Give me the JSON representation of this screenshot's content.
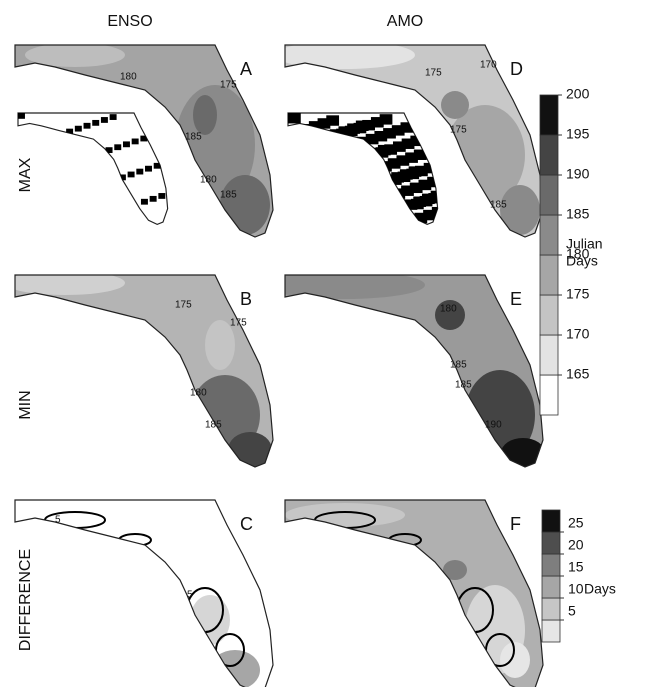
{
  "columns": [
    "ENSO",
    "AMO"
  ],
  "rows": [
    "MAX",
    "MIN",
    "DIFFERENCE"
  ],
  "panels": [
    {
      "letter": "A",
      "contour_labels": [
        "180",
        "175",
        "185",
        "180",
        "185"
      ]
    },
    {
      "letter": "D",
      "contour_labels": [
        "175",
        "170",
        "175",
        "185"
      ]
    },
    {
      "letter": "B",
      "contour_labels": [
        "175",
        "175",
        "180",
        "185"
      ]
    },
    {
      "letter": "E",
      "contour_labels": [
        "180",
        "185",
        "190",
        "185"
      ]
    },
    {
      "letter": "C",
      "contour_labels": [
        "5",
        "5"
      ]
    },
    {
      "letter": "F"
    }
  ],
  "colorbars": [
    {
      "label": [
        "Julian",
        "Days"
      ],
      "ticks": [
        165,
        170,
        175,
        180,
        185,
        190,
        195,
        200
      ],
      "colors": [
        "#ffffff",
        "#e3e3e3",
        "#c4c4c4",
        "#a6a6a6",
        "#8a8a8a",
        "#6a6a6a",
        "#444444",
        "#111111"
      ]
    },
    {
      "label": [
        "Days"
      ],
      "ticks": [
        5,
        10,
        15,
        20,
        25
      ],
      "colors": [
        "#e6e6e6",
        "#c6c6c6",
        "#a6a6a6",
        "#7e7e7e",
        "#4e4e4e",
        "#111111"
      ]
    }
  ]
}
